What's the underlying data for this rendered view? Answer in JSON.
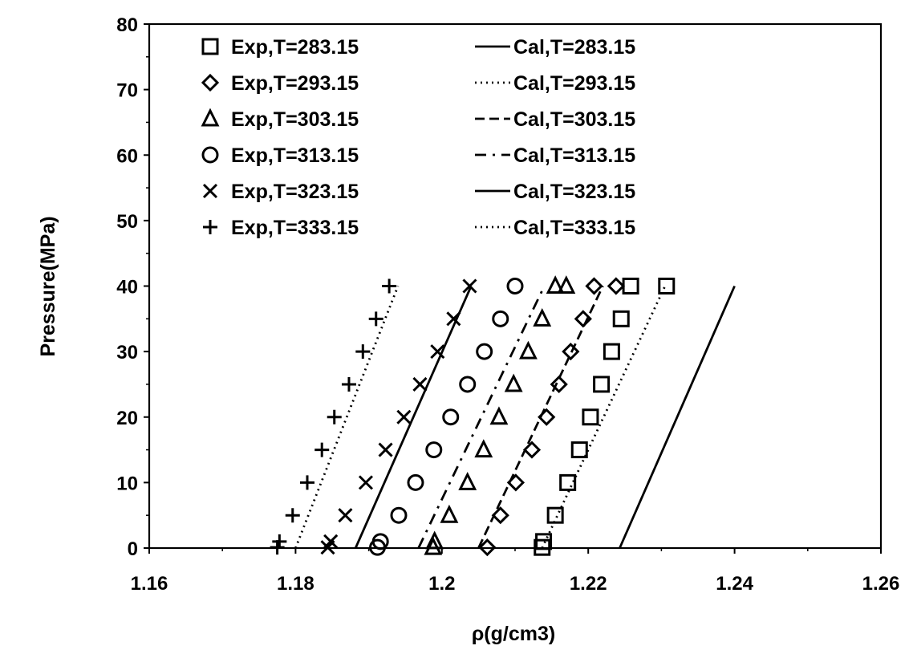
{
  "chart_data": {
    "type": "scatter",
    "title": "",
    "xlabel": "ρ(g/cm3)",
    "ylabel": "Pressure(MPa)",
    "xlim": [
      1.16,
      1.26
    ],
    "ylim": [
      0,
      80
    ],
    "xticks": [
      "1.16",
      "1.18",
      "1.2",
      "1.22",
      "1.24",
      "1.26"
    ],
    "yticks": [
      "0",
      "10",
      "20",
      "30",
      "40",
      "50",
      "60",
      "70",
      "80"
    ],
    "xtick_values": [
      1.16,
      1.18,
      1.2,
      1.22,
      1.24,
      1.26
    ],
    "ytick_values": [
      0,
      10,
      20,
      30,
      40,
      50,
      60,
      70,
      80
    ],
    "grid": false,
    "legend_position": "top-left",
    "series": [
      {
        "name": "Exp,T=283.15",
        "kind": "markers",
        "marker": "square",
        "x": [
          1.2137,
          1.2139,
          1.2155,
          1.2172,
          1.2188,
          1.2203,
          1.2218,
          1.2232,
          1.2245,
          1.2258,
          1.2307
        ],
        "y": [
          0.1,
          1,
          5,
          10,
          15,
          20,
          25,
          30,
          35,
          40,
          40
        ]
      },
      {
        "name": "Exp,T=293.15",
        "kind": "markers",
        "marker": "diamond",
        "x": [
          1.2062,
          1.208,
          1.2101,
          1.2123,
          1.2143,
          1.216,
          1.2176,
          1.2193,
          1.2208,
          1.2238
        ],
        "y": [
          0.1,
          5,
          10,
          15,
          20,
          25,
          30,
          35,
          40,
          40
        ]
      },
      {
        "name": "Exp,T=303.15",
        "kind": "markers",
        "marker": "triangle",
        "x": [
          1.1988,
          1.199,
          1.201,
          1.2035,
          1.2057,
          1.2078,
          1.2098,
          1.2118,
          1.2137,
          1.2155,
          1.217
        ],
        "y": [
          0.1,
          1,
          5,
          10,
          15,
          20,
          25,
          30,
          35,
          40,
          40
        ]
      },
      {
        "name": "Exp,T=313.15",
        "kind": "markers",
        "marker": "circle",
        "x": [
          1.1912,
          1.1916,
          1.1941,
          1.1964,
          1.1989,
          1.2012,
          1.2035,
          1.2058,
          1.208,
          1.21
        ],
        "y": [
          0.1,
          1,
          5,
          10,
          15,
          20,
          25,
          30,
          35,
          40
        ]
      },
      {
        "name": "Exp,T=323.15",
        "kind": "markers",
        "marker": "cross",
        "x": [
          1.1844,
          1.1848,
          1.1868,
          1.1896,
          1.1923,
          1.1948,
          1.197,
          1.1994,
          1.2016,
          1.2038
        ],
        "y": [
          0.1,
          1,
          5,
          10,
          15,
          20,
          25,
          30,
          35,
          40
        ]
      },
      {
        "name": "Exp,T=333.15",
        "kind": "markers",
        "marker": "plus",
        "x": [
          1.1775,
          1.1778,
          1.1796,
          1.1816,
          1.1836,
          1.1853,
          1.1873,
          1.1892,
          1.191,
          1.1928
        ],
        "y": [
          0.1,
          1,
          5,
          10,
          15,
          20,
          25,
          30,
          35,
          40
        ]
      },
      {
        "name": "Cal,T=283.15",
        "kind": "line",
        "dash": "solid",
        "x": [
          1.2243,
          1.24
        ],
        "y": [
          0,
          40
        ]
      },
      {
        "name": "Cal,T=293.15",
        "kind": "line",
        "dash": "dotted",
        "x": [
          1.2137,
          1.2305
        ],
        "y": [
          0,
          40
        ]
      },
      {
        "name": "Cal,T=303.15",
        "kind": "line",
        "dash": "dashed",
        "x": [
          1.205,
          1.222
        ],
        "y": [
          0,
          40
        ]
      },
      {
        "name": "Cal,T=313.15",
        "kind": "line",
        "dash": "dashdot",
        "x": [
          1.1968,
          1.214
        ],
        "y": [
          0,
          40
        ]
      },
      {
        "name": "Cal,T=323.15",
        "kind": "line",
        "dash": "solid",
        "x": [
          1.1882,
          1.204
        ],
        "y": [
          0,
          40
        ]
      },
      {
        "name": "Cal,T=333.15",
        "kind": "line",
        "dash": "dotted",
        "x": [
          1.18,
          1.194
        ],
        "y": [
          0,
          40
        ]
      }
    ]
  }
}
